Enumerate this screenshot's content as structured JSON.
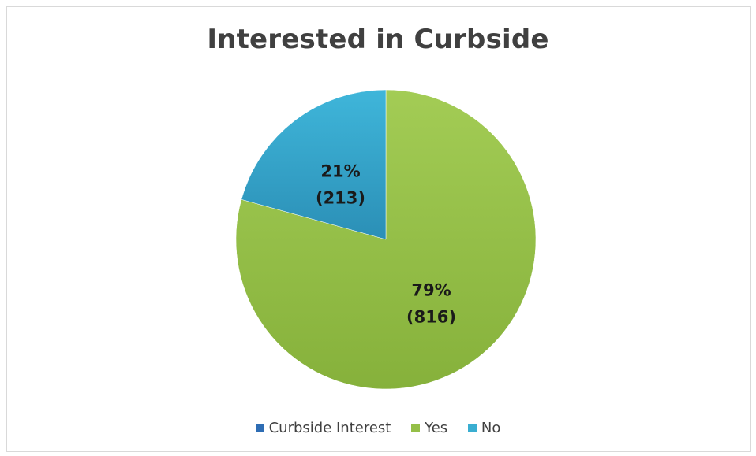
{
  "chart_data": {
    "type": "pie",
    "title": "Interested in Curbside",
    "slices": [
      {
        "name": "Yes",
        "value": 816,
        "label_pct": "79%",
        "label_count": "(816)",
        "color": "#95bf48"
      },
      {
        "name": "No",
        "value": 213,
        "label_pct": "21%",
        "label_count": "(213)",
        "color": "#3aaed1"
      }
    ],
    "legend": {
      "placement": "bottom",
      "entries": [
        {
          "name": "Curbside Interest",
          "color": "#2e6db4"
        },
        {
          "name": "Yes",
          "color": "#95bf48"
        },
        {
          "name": "No",
          "color": "#3aaed1"
        }
      ]
    }
  }
}
